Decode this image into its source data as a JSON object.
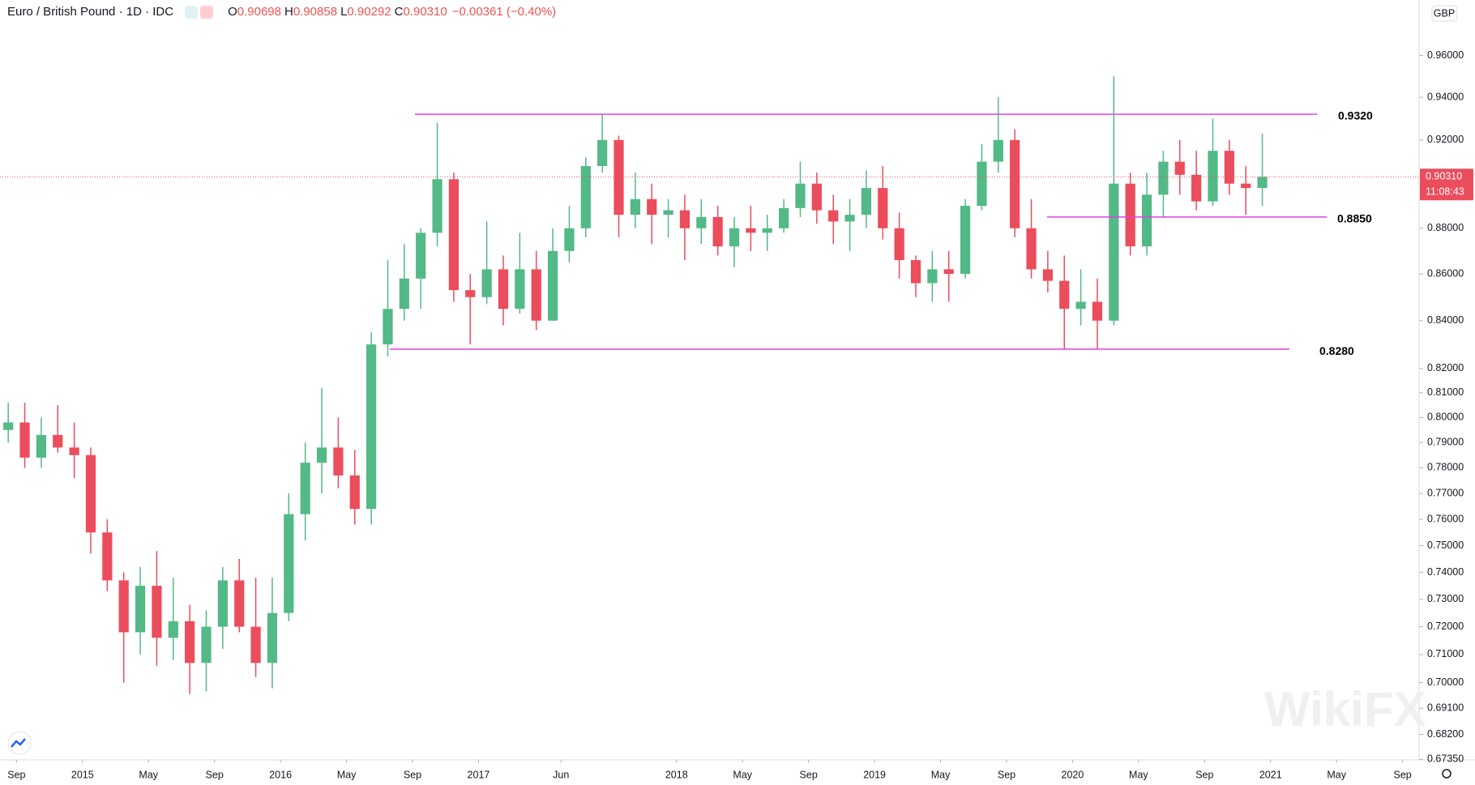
{
  "header": {
    "symbol": "Euro / British Pound · 1D · IDC",
    "ohlc": [
      {
        "key": "O",
        "value": "0.90698"
      },
      {
        "key": "H",
        "value": "0.90858"
      },
      {
        "key": "L",
        "value": "0.90292"
      },
      {
        "key": "C",
        "value": "0.90310"
      }
    ],
    "change": "−0.00361 (−0.40%)"
  },
  "chart_data": {
    "type": "candlestick",
    "log_scale": true,
    "grid": false,
    "up_color": "#53b987",
    "down_color": "#eb4d5c",
    "level_color": "#e040e0",
    "currency": "GBP",
    "x": [
      "2014-08",
      "2014-09",
      "2014-10",
      "2014-11",
      "2014-12",
      "2015-01",
      "2015-02",
      "2015-03",
      "2015-04",
      "2015-05",
      "2015-06",
      "2015-07",
      "2015-08",
      "2015-09",
      "2015-10",
      "2015-11",
      "2015-12",
      "2016-01",
      "2016-02",
      "2016-03",
      "2016-04",
      "2016-05",
      "2016-06",
      "2016-07",
      "2016-08",
      "2016-09",
      "2016-10",
      "2016-11",
      "2016-12",
      "2017-01",
      "2017-02",
      "2017-03",
      "2017-04",
      "2017-05",
      "2017-06",
      "2017-07",
      "2017-08",
      "2017-09",
      "2017-10",
      "2017-11",
      "2017-12",
      "2018-01",
      "2018-02",
      "2018-03",
      "2018-04",
      "2018-05",
      "2018-06",
      "2018-07",
      "2018-08",
      "2018-09",
      "2018-10",
      "2018-11",
      "2018-12",
      "2019-01",
      "2019-02",
      "2019-03",
      "2019-04",
      "2019-05",
      "2019-06",
      "2019-07",
      "2019-08",
      "2019-09",
      "2019-10",
      "2019-11",
      "2019-12",
      "2020-01",
      "2020-02",
      "2020-03",
      "2020-04",
      "2020-05",
      "2020-06",
      "2020-07",
      "2020-08",
      "2020-09",
      "2020-10",
      "2020-11",
      "2020-12"
    ],
    "open": [
      0.795,
      0.798,
      0.784,
      0.793,
      0.788,
      0.785,
      0.755,
      0.737,
      0.718,
      0.735,
      0.716,
      0.722,
      0.707,
      0.72,
      0.737,
      0.72,
      0.707,
      0.725,
      0.762,
      0.782,
      0.788,
      0.777,
      0.764,
      0.83,
      0.845,
      0.858,
      0.878,
      0.902,
      0.853,
      0.85,
      0.862,
      0.845,
      0.862,
      0.84,
      0.87,
      0.88,
      0.908,
      0.92,
      0.886,
      0.893,
      0.886,
      0.888,
      0.88,
      0.885,
      0.872,
      0.88,
      0.878,
      0.88,
      0.889,
      0.9,
      0.888,
      0.883,
      0.886,
      0.898,
      0.88,
      0.866,
      0.856,
      0.862,
      0.86,
      0.89,
      0.91,
      0.92,
      0.88,
      0.862,
      0.857,
      0.845,
      0.848,
      0.84,
      0.9,
      0.872,
      0.895,
      0.91,
      0.904,
      0.892,
      0.915,
      0.9,
      0.898
    ],
    "high": [
      0.806,
      0.806,
      0.8,
      0.805,
      0.798,
      0.788,
      0.76,
      0.74,
      0.742,
      0.748,
      0.738,
      0.728,
      0.726,
      0.742,
      0.745,
      0.738,
      0.738,
      0.77,
      0.79,
      0.812,
      0.8,
      0.787,
      0.835,
      0.866,
      0.873,
      0.88,
      0.928,
      0.905,
      0.86,
      0.883,
      0.868,
      0.878,
      0.87,
      0.88,
      0.89,
      0.912,
      0.932,
      0.922,
      0.905,
      0.9,
      0.893,
      0.895,
      0.893,
      0.89,
      0.885,
      0.89,
      0.886,
      0.893,
      0.91,
      0.905,
      0.895,
      0.893,
      0.906,
      0.908,
      0.887,
      0.868,
      0.87,
      0.87,
      0.893,
      0.918,
      0.94,
      0.925,
      0.893,
      0.87,
      0.868,
      0.862,
      0.858,
      0.95,
      0.905,
      0.905,
      0.915,
      0.92,
      0.915,
      0.93,
      0.92,
      0.908,
      0.923
    ],
    "low": [
      0.79,
      0.78,
      0.78,
      0.786,
      0.776,
      0.747,
      0.733,
      0.7,
      0.71,
      0.706,
      0.708,
      0.696,
      0.697,
      0.712,
      0.718,
      0.702,
      0.698,
      0.722,
      0.752,
      0.77,
      0.772,
      0.758,
      0.758,
      0.825,
      0.84,
      0.845,
      0.872,
      0.848,
      0.83,
      0.847,
      0.838,
      0.843,
      0.836,
      0.84,
      0.865,
      0.876,
      0.905,
      0.876,
      0.88,
      0.873,
      0.876,
      0.866,
      0.873,
      0.868,
      0.863,
      0.87,
      0.87,
      0.878,
      0.885,
      0.882,
      0.873,
      0.87,
      0.88,
      0.875,
      0.858,
      0.85,
      0.848,
      0.848,
      0.858,
      0.888,
      0.905,
      0.876,
      0.858,
      0.852,
      0.828,
      0.838,
      0.828,
      0.838,
      0.868,
      0.868,
      0.885,
      0.895,
      0.888,
      0.89,
      0.895,
      0.886,
      0.89
    ],
    "close": [
      0.798,
      0.784,
      0.793,
      0.788,
      0.785,
      0.755,
      0.737,
      0.718,
      0.735,
      0.716,
      0.722,
      0.707,
      0.72,
      0.737,
      0.72,
      0.707,
      0.725,
      0.762,
      0.782,
      0.788,
      0.777,
      0.764,
      0.83,
      0.845,
      0.858,
      0.878,
      0.902,
      0.853,
      0.85,
      0.862,
      0.845,
      0.862,
      0.84,
      0.87,
      0.88,
      0.908,
      0.92,
      0.886,
      0.893,
      0.886,
      0.888,
      0.88,
      0.885,
      0.872,
      0.88,
      0.878,
      0.88,
      0.889,
      0.9,
      0.888,
      0.883,
      0.886,
      0.898,
      0.88,
      0.866,
      0.856,
      0.862,
      0.86,
      0.89,
      0.91,
      0.92,
      0.88,
      0.862,
      0.857,
      0.845,
      0.848,
      0.84,
      0.9,
      0.872,
      0.895,
      0.91,
      0.904,
      0.892,
      0.915,
      0.9,
      0.898,
      0.9031
    ],
    "xlim": [
      "2014-08",
      "2021-10"
    ],
    "ylim": [
      0.6733,
      0.9872
    ],
    "xticks": [
      {
        "value": "2014-09",
        "label": "Sep"
      },
      {
        "value": "2015-01",
        "label": "2015"
      },
      {
        "value": "2015-05",
        "label": "May"
      },
      {
        "value": "2015-09",
        "label": "Sep"
      },
      {
        "value": "2016-01",
        "label": "2016"
      },
      {
        "value": "2016-05",
        "label": "May"
      },
      {
        "value": "2016-09",
        "label": "Sep"
      },
      {
        "value": "2017-01",
        "label": "2017"
      },
      {
        "value": "2017-06",
        "label": "Jun"
      },
      {
        "value": "2018-01",
        "label": "2018"
      },
      {
        "value": "2018-05",
        "label": "May"
      },
      {
        "value": "2018-09",
        "label": "Sep"
      },
      {
        "value": "2019-01",
        "label": "2019"
      },
      {
        "value": "2019-05",
        "label": "May"
      },
      {
        "value": "2019-09",
        "label": "Sep"
      },
      {
        "value": "2020-01",
        "label": "2020"
      },
      {
        "value": "2020-05",
        "label": "May"
      },
      {
        "value": "2020-09",
        "label": "Sep"
      },
      {
        "value": "2021-01",
        "label": "2021"
      },
      {
        "value": "2021-05",
        "label": "May"
      },
      {
        "value": "2021-09",
        "label": "Sep"
      }
    ],
    "yticks": [
      {
        "value": 0.96,
        "label": "0.96000"
      },
      {
        "value": 0.94,
        "label": "0.94000"
      },
      {
        "value": 0.92,
        "label": "0.92000"
      },
      {
        "value": 0.88,
        "label": "0.88000"
      },
      {
        "value": 0.86,
        "label": "0.86000"
      },
      {
        "value": 0.84,
        "label": "0.84000"
      },
      {
        "value": 0.82,
        "label": "0.82000"
      },
      {
        "value": 0.81,
        "label": "0.81000"
      },
      {
        "value": 0.8,
        "label": "0.80000"
      },
      {
        "value": 0.79,
        "label": "0.79000"
      },
      {
        "value": 0.78,
        "label": "0.78000"
      },
      {
        "value": 0.77,
        "label": "0.77000"
      },
      {
        "value": 0.76,
        "label": "0.76000"
      },
      {
        "value": 0.75,
        "label": "0.75000"
      },
      {
        "value": 0.74,
        "label": "0.74000"
      },
      {
        "value": 0.73,
        "label": "0.73000"
      },
      {
        "value": 0.72,
        "label": "0.72000"
      },
      {
        "value": 0.71,
        "label": "0.71000"
      },
      {
        "value": 0.7,
        "label": "0.70000"
      },
      {
        "value": 0.691,
        "label": "0.69100"
      },
      {
        "value": 0.682,
        "label": "0.68200"
      },
      {
        "value": 0.6735,
        "label": "0.67350"
      }
    ],
    "last_price": {
      "value": 0.9031,
      "label": "0.90310"
    },
    "countdown": "11:08:43",
    "annotations": [
      {
        "value": 0.932,
        "label": "0.9320"
      },
      {
        "value": 0.885,
        "label": "0.8850"
      },
      {
        "value": 0.828,
        "label": "0.8280"
      }
    ]
  },
  "watermark": "WikiFX"
}
